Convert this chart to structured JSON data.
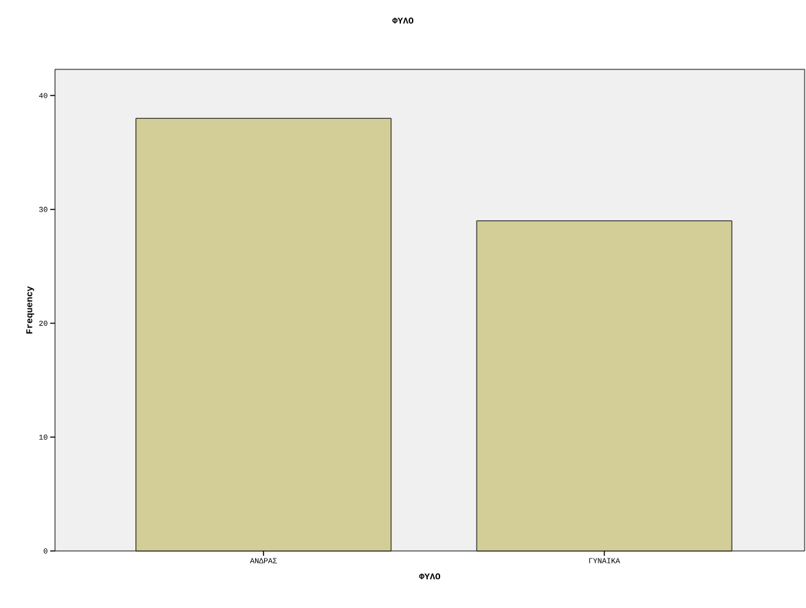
{
  "chart_data": {
    "type": "bar",
    "title": "ΦΥΛΟ",
    "xlabel": "ΦΥΛΟ",
    "ylabel": "Frequency",
    "categories": [
      "ΑΝΔΡΑΣ",
      "ΓΥΝΑΙΚΑ"
    ],
    "values": [
      38,
      29
    ],
    "color": "#d3ce97",
    "ylim": [
      0,
      42.3
    ],
    "yticks": [
      0,
      10,
      20,
      30,
      40
    ],
    "grid": false
  }
}
